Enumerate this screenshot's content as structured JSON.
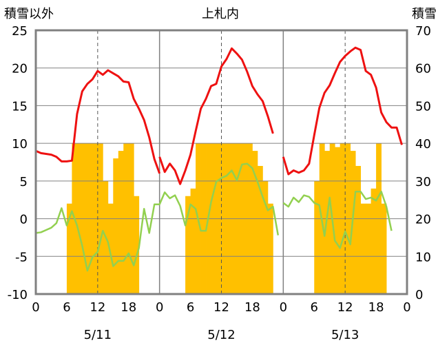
{
  "chart_data": {
    "type": "line",
    "title": "上札内",
    "left_axis_title": "積雪以外",
    "right_axis_title": "積雪",
    "left_ylim": [
      -10,
      25
    ],
    "left_yticks": [
      "25",
      "20",
      "15",
      "10",
      "5",
      "0",
      "-5",
      "-10"
    ],
    "right_ylim": [
      0,
      70
    ],
    "right_yticks": [
      "70",
      "60",
      "50",
      "40",
      "30",
      "20",
      "10",
      "0"
    ],
    "x_hour_ticks": [
      "0",
      "6",
      "12",
      "18",
      "0",
      "6",
      "12",
      "18",
      "0",
      "6",
      "12",
      "18",
      "0"
    ],
    "day_labels": [
      "5/11",
      "5/12",
      "5/13"
    ],
    "grid": true,
    "series": [
      {
        "color": "#ee1111",
        "axis": "left",
        "segments": [
          [
            9,
            8.7,
            8.6,
            8.5,
            8.2,
            7.6,
            7.6,
            7.7,
            13.9,
            16.9,
            17.9,
            18.5,
            19.6,
            19.1,
            19.7,
            19.3,
            18.9,
            18.2,
            18.1,
            15.9,
            14.6,
            13.1,
            10.8,
            7.9,
            6
          ],
          [
            8.2,
            6.2,
            7.3,
            6.4,
            4.6,
            6.4,
            8.5,
            11.6,
            14.6,
            15.9,
            17.6,
            17.9,
            20.2,
            21.2,
            22.6,
            21.9,
            21.1,
            19.5,
            17.6,
            16.5,
            15.6,
            13.6,
            11.3
          ],
          [
            8.2,
            5.9,
            6.4,
            6.1,
            6.4,
            7.3,
            11.1,
            14.7,
            16.7,
            17.7,
            19.3,
            20.8,
            21.6,
            22.2,
            22.7,
            22.4,
            19.6,
            19.1,
            17.4,
            14.1,
            12.8,
            12.1,
            12.1,
            9.8
          ]
        ]
      },
      {
        "color": "#92d050",
        "axis": "left",
        "segments": [
          [
            -1.9,
            -1.8,
            -1.5,
            -1.2,
            -0.6,
            1.4,
            -0.9,
            1.0,
            -0.9,
            -3.6,
            -6.9,
            -5.1,
            -4.4,
            -1.6,
            -3.1,
            -6.3,
            -5.6,
            -5.6,
            -4.6,
            -6.2,
            -3.9,
            1.3,
            -1.9,
            1.9,
            1.9,
            3.5,
            2.7,
            3.1,
            1.7,
            -0.9,
            1.9,
            1.3,
            -1.6,
            -1.6,
            2.2,
            4.9,
            5.4,
            5.7,
            6.4,
            5.1,
            7.2,
            7.3,
            6.7,
            4.9,
            2.9,
            1.1,
            1.6,
            -2.2
          ]
        ]
      },
      {
        "color": "#92d050",
        "axis": "left",
        "segments": [
          [
            2.1,
            1.6,
            2.8,
            2.2,
            3.1,
            2.9,
            2.1,
            1.8,
            -2.3,
            2.8,
            -2.9,
            -3.9,
            -1.7,
            -3.4,
            3.6,
            3.6,
            2.6,
            2.8,
            2.4,
            3.6,
            1.6,
            -1.6
          ]
        ]
      },
      {
        "color": "#ffc000",
        "type": "bar",
        "axis": "right",
        "values": [
          0,
          0,
          0,
          0,
          0,
          0,
          24,
          40,
          40,
          40,
          40,
          40,
          40,
          30,
          24,
          36,
          38,
          40,
          40,
          26,
          0,
          0,
          0,
          0,
          0,
          0,
          0,
          0,
          0,
          26,
          28,
          40,
          40,
          40,
          40,
          40,
          40,
          40,
          40,
          40,
          40,
          40,
          38,
          34,
          30,
          24,
          0,
          0,
          0,
          0,
          0,
          0,
          0,
          0,
          30,
          40,
          38,
          40,
          39,
          40,
          40,
          38,
          34,
          24,
          24,
          28,
          40,
          24,
          0,
          0,
          0,
          0
        ]
      }
    ]
  }
}
